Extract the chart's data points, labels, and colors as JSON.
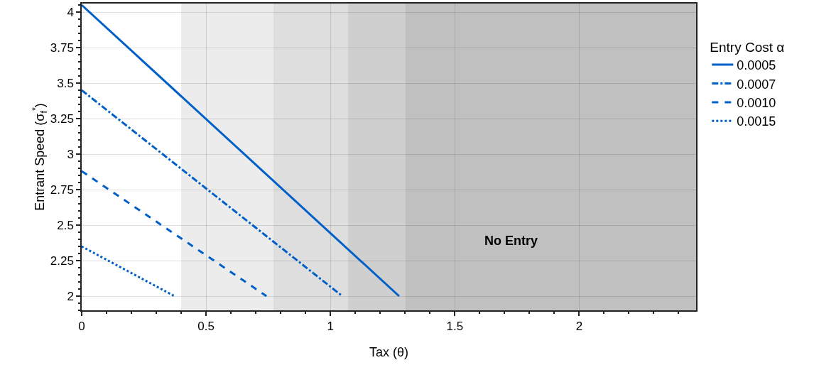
{
  "chart_data": {
    "type": "line",
    "xlabel": "Tax (θ)",
    "ylabel": "Entrant Speed (σ$_{f}$$^{*}$)",
    "legend_title": "Entry Cost α",
    "xlim": [
      0,
      2.47
    ],
    "xticks": [
      0,
      0.5,
      1,
      1.5,
      2
    ],
    "ylim": [
      1.9,
      4.06
    ],
    "yticks": [
      2,
      2.25,
      2.5,
      2.75,
      3,
      3.25,
      3.5,
      3.75,
      4
    ],
    "grid": true,
    "legend": "right",
    "marker": "none",
    "series": [
      {
        "name": "0.0005",
        "color": "#0060c8",
        "line_style": "solid",
        "x": [
          0,
          1.276
        ],
        "values": [
          4.05,
          2.0
        ]
      },
      {
        "name": "0.0007",
        "color": "#0060c8",
        "line_style": "dashdot",
        "x": [
          0,
          1.048
        ],
        "values": [
          3.45,
          2.0
        ]
      },
      {
        "name": "0.0010",
        "color": "#0060c8",
        "line_style": "dashed",
        "x": [
          0,
          0.743
        ],
        "values": [
          2.88,
          2.0
        ]
      },
      {
        "name": "0.0015",
        "color": "#0060c8",
        "line_style": "dotted",
        "x": [
          0,
          0.373
        ],
        "values": [
          2.35,
          2.0
        ]
      }
    ],
    "bands": [
      {
        "axis": "x",
        "from": 0.4,
        "to": 0.771,
        "color": "#ececec"
      },
      {
        "axis": "x",
        "from": 0.771,
        "to": 1.071,
        "color": "#dedede"
      },
      {
        "axis": "x",
        "from": 1.071,
        "to": 1.3,
        "color": "#cfcfcf"
      },
      {
        "axis": "x",
        "from": 1.3,
        "to": 2.47,
        "color": "#c0c0c0"
      }
    ],
    "annotations": [
      "No Entry"
    ]
  }
}
